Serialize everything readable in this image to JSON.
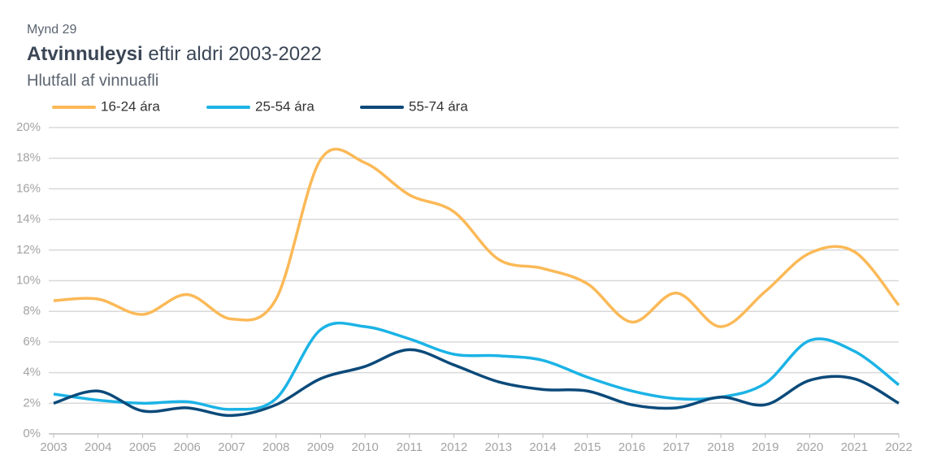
{
  "chart_data": {
    "type": "line",
    "label": "Mynd 29",
    "title": "Atvinnuleysi eftir aldri 2003-2022",
    "subtitle": "Hlutfall af vinnuafli",
    "x": [
      2003,
      2004,
      2005,
      2006,
      2007,
      2008,
      2009,
      2010,
      2011,
      2012,
      2013,
      2014,
      2015,
      2016,
      2017,
      2018,
      2019,
      2020,
      2021,
      2022
    ],
    "series": [
      {
        "name": "16-24 ára",
        "color": "#fbb957",
        "values": [
          8.7,
          8.8,
          7.8,
          9.1,
          7.5,
          8.8,
          17.9,
          17.7,
          15.6,
          14.5,
          11.4,
          10.8,
          9.8,
          7.3,
          9.2,
          7.0,
          9.3,
          11.8,
          11.9,
          8.4
        ]
      },
      {
        "name": "25-54 ára",
        "color": "#1bb3e6",
        "values": [
          2.6,
          2.2,
          2.0,
          2.1,
          1.6,
          2.3,
          6.8,
          7.0,
          6.2,
          5.2,
          5.1,
          4.8,
          3.7,
          2.8,
          2.3,
          2.4,
          3.3,
          6.1,
          5.4,
          3.2
        ]
      },
      {
        "name": "55-74 ára",
        "color": "#0b4a7a",
        "values": [
          2.0,
          2.8,
          1.5,
          1.7,
          1.2,
          1.9,
          3.6,
          4.4,
          5.5,
          4.5,
          3.4,
          2.9,
          2.8,
          1.9,
          1.7,
          2.4,
          1.9,
          3.5,
          3.6,
          2.0
        ]
      }
    ],
    "xlim": [
      2003,
      2022
    ],
    "xticks": [
      2003,
      2004,
      2005,
      2006,
      2007,
      2008,
      2009,
      2010,
      2011,
      2012,
      2013,
      2014,
      2015,
      2016,
      2017,
      2018,
      2019,
      2020,
      2021,
      2022
    ],
    "ylim": [
      0,
      20
    ],
    "yticks": [
      {
        "value": 0,
        "label": "0%"
      },
      {
        "value": 2,
        "label": "2%"
      },
      {
        "value": 4,
        "label": "4%"
      },
      {
        "value": 6,
        "label": "6%"
      },
      {
        "value": 8,
        "label": "8%"
      },
      {
        "value": 10,
        "label": "10%"
      },
      {
        "value": 12,
        "label": "12%"
      },
      {
        "value": 14,
        "label": "14%"
      },
      {
        "value": 16,
        "label": "16%"
      },
      {
        "value": 18,
        "label": "18%"
      },
      {
        "value": 20,
        "label": "20%"
      }
    ],
    "grid": true,
    "legend": "top"
  }
}
